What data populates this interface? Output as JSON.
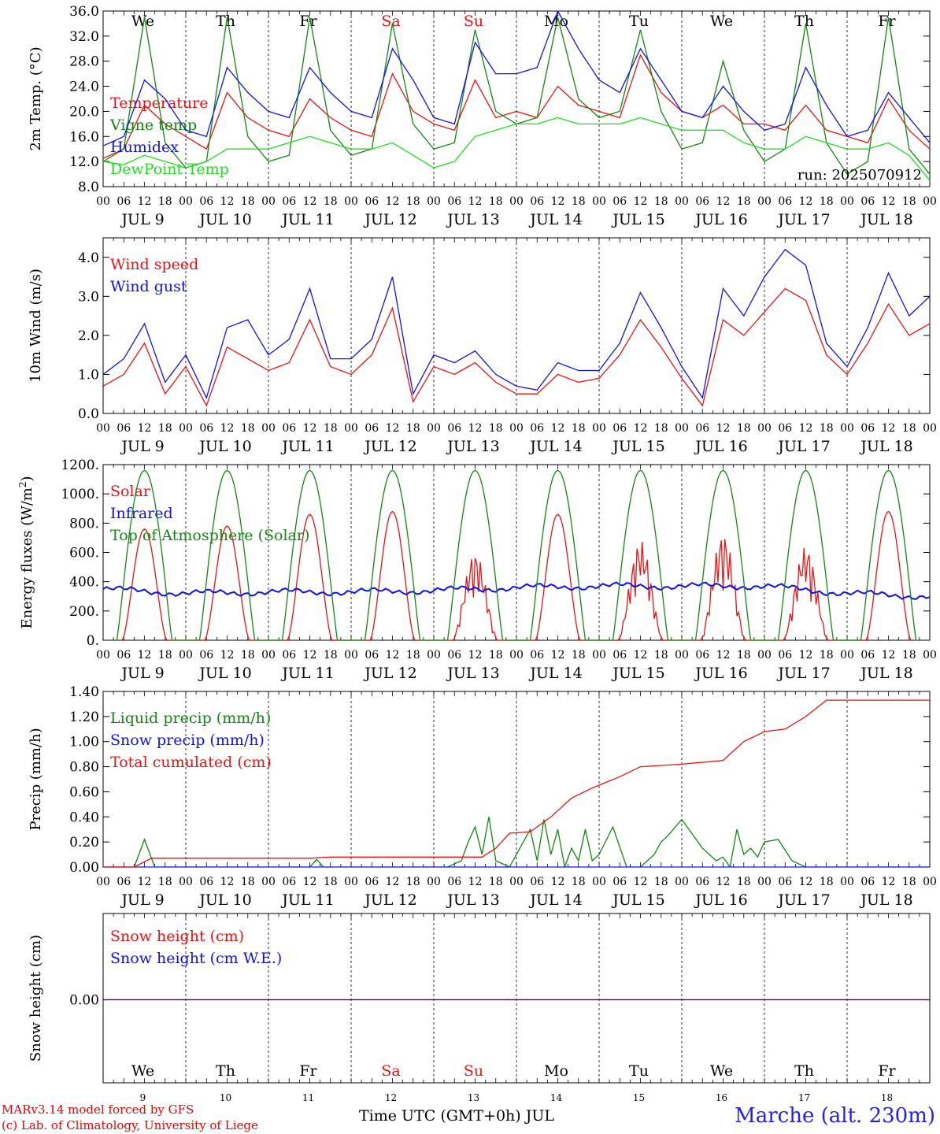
{
  "colors": {
    "red": "#ee1111",
    "green": "#118811",
    "blue": "#1111ee",
    "lightgreen": "#22dd22",
    "black": "#000000"
  },
  "days": {
    "abbrev": [
      "We",
      "Th",
      "Fr",
      "Sa",
      "Su",
      "Mo",
      "Tu",
      "We",
      "Th",
      "Fr"
    ],
    "weekend": [
      false,
      false,
      false,
      true,
      true,
      false,
      false,
      false,
      false,
      false
    ],
    "dates": [
      "JUL  9",
      "JUL 10",
      "JUL 11",
      "JUL 12",
      "JUL 13",
      "JUL 14",
      "JUL 15",
      "JUL 16",
      "JUL 17",
      "JUL 18"
    ],
    "numbers": [
      "9",
      "10",
      "11",
      "12",
      "13",
      "14",
      "15",
      "16",
      "17",
      "18"
    ]
  },
  "hour_labels": [
    "00",
    "06",
    "12",
    "18"
  ],
  "footer": {
    "model": "MARv3.14 model forced by GFS",
    "credit": "(c) Lab. of Climatology, University of Liege",
    "xlabel": "Time UTC (GMT+0h) JUL",
    "station": "Marche (alt. 230m)"
  },
  "chart_data": [
    {
      "type": "line",
      "ylabel": "2m Temp. (°C)",
      "ylim": [
        8,
        36
      ],
      "yticks": [
        "8.0",
        "12.0",
        "16.0",
        "20.0",
        "24.0",
        "28.0",
        "32.0",
        "36.0"
      ],
      "annotation": "run: 2025070912",
      "x_unit": "hours since JUL 9 00 UTC",
      "series": [
        {
          "name": "Temperature",
          "color": "#ee1111",
          "x": [
            0,
            6,
            12,
            18,
            24,
            30,
            36,
            42,
            48,
            54,
            60,
            66,
            72,
            78,
            84,
            90,
            96,
            102,
            108,
            114,
            120,
            126,
            132,
            138,
            144,
            150,
            156,
            162,
            168,
            174,
            180,
            186,
            192,
            198,
            204,
            210,
            216,
            222,
            228,
            234,
            240
          ],
          "values": [
            12.5,
            14,
            21,
            18,
            16,
            14,
            23,
            19,
            17,
            16,
            22,
            19,
            17,
            16,
            26,
            20,
            18,
            17,
            25,
            19,
            20,
            19,
            24,
            21,
            20,
            19,
            29,
            23,
            20,
            19,
            21,
            18,
            18,
            17,
            21,
            17,
            16,
            15,
            22,
            17,
            14
          ]
        },
        {
          "name": "Vigne temp",
          "color": "#118811",
          "x": [
            0,
            6,
            12,
            18,
            24,
            30,
            36,
            42,
            48,
            54,
            60,
            66,
            72,
            78,
            84,
            90,
            96,
            102,
            108,
            114,
            120,
            126,
            132,
            138,
            144,
            150,
            156,
            162,
            168,
            174,
            180,
            186,
            192,
            198,
            204,
            210,
            216,
            222,
            228,
            234,
            240
          ],
          "values": [
            12,
            14,
            35,
            15,
            11,
            12,
            35,
            16,
            12,
            13,
            35,
            17,
            13,
            14,
            34,
            18,
            14,
            15,
            33,
            20,
            18,
            19,
            35,
            22,
            19,
            20,
            33,
            20,
            14,
            15,
            28,
            17,
            12,
            14,
            34,
            15,
            10,
            12,
            35,
            14,
            10
          ]
        },
        {
          "name": "Humidex",
          "color": "#1111ee",
          "x": [
            0,
            6,
            12,
            18,
            24,
            30,
            36,
            42,
            48,
            54,
            60,
            66,
            72,
            78,
            84,
            90,
            96,
            102,
            108,
            114,
            120,
            126,
            132,
            138,
            144,
            150,
            156,
            162,
            168,
            174,
            180,
            186,
            192,
            198,
            204,
            210,
            216,
            222,
            228,
            234,
            240
          ],
          "values": [
            14.5,
            16,
            25,
            22,
            17,
            16,
            27,
            23,
            20,
            19,
            27,
            23,
            20,
            19,
            30,
            25,
            19,
            18,
            31,
            26,
            26,
            27,
            36,
            30,
            25,
            23,
            30,
            25,
            20,
            19,
            24,
            20,
            17,
            18,
            27,
            21,
            16,
            17,
            23,
            19,
            15
          ]
        },
        {
          "name": "DewPoint Temp",
          "color": "#22dd22",
          "x": [
            0,
            6,
            12,
            18,
            24,
            30,
            36,
            42,
            48,
            54,
            60,
            66,
            72,
            78,
            84,
            90,
            96,
            102,
            108,
            114,
            120,
            126,
            132,
            138,
            144,
            150,
            156,
            162,
            168,
            174,
            180,
            186,
            192,
            198,
            204,
            210,
            216,
            222,
            228,
            234,
            240
          ],
          "values": [
            12,
            11.5,
            13,
            12,
            11,
            12,
            14,
            14,
            14,
            15,
            16,
            15,
            14,
            14,
            15,
            13,
            11,
            12,
            16,
            17,
            18,
            18,
            19,
            18,
            18,
            18,
            19,
            18,
            17,
            17,
            17,
            15,
            14,
            14,
            16,
            15,
            14,
            14,
            15,
            13,
            9
          ]
        }
      ]
    },
    {
      "type": "line",
      "ylabel": "10m Wind (m/s)",
      "ylim": [
        0,
        4.5
      ],
      "yticks": [
        "0.0",
        "1.0",
        "2.0",
        "3.0",
        "4.0"
      ],
      "series": [
        {
          "name": "Wind speed",
          "color": "#ee1111",
          "x": [
            0,
            6,
            12,
            18,
            24,
            30,
            36,
            42,
            48,
            54,
            60,
            66,
            72,
            78,
            84,
            90,
            96,
            102,
            108,
            114,
            120,
            126,
            132,
            138,
            144,
            150,
            156,
            162,
            168,
            174,
            180,
            186,
            192,
            198,
            204,
            210,
            216,
            222,
            228,
            234,
            240
          ],
          "values": [
            0.7,
            1.0,
            1.8,
            0.5,
            1.2,
            0.2,
            1.7,
            1.4,
            1.1,
            1.3,
            2.4,
            1.2,
            1.0,
            1.5,
            2.7,
            0.3,
            1.2,
            1.0,
            1.3,
            0.8,
            0.5,
            0.5,
            1.0,
            0.8,
            0.9,
            1.5,
            2.4,
            1.7,
            0.9,
            0.2,
            2.4,
            2.0,
            2.6,
            3.2,
            2.9,
            1.5,
            1.0,
            1.8,
            2.8,
            2.0,
            2.3
          ]
        },
        {
          "name": "Wind gust",
          "color": "#1111ee",
          "x": [
            0,
            6,
            12,
            18,
            24,
            30,
            36,
            42,
            48,
            54,
            60,
            66,
            72,
            78,
            84,
            90,
            96,
            102,
            108,
            114,
            120,
            126,
            132,
            138,
            144,
            150,
            156,
            162,
            168,
            174,
            180,
            186,
            192,
            198,
            204,
            210,
            216,
            222,
            228,
            234,
            240
          ],
          "values": [
            1.0,
            1.4,
            2.3,
            0.8,
            1.5,
            0.4,
            2.2,
            2.4,
            1.5,
            1.9,
            3.2,
            1.4,
            1.4,
            1.9,
            3.5,
            0.5,
            1.5,
            1.3,
            1.6,
            1.0,
            0.7,
            0.6,
            1.3,
            1.1,
            1.1,
            1.8,
            3.1,
            2.2,
            1.2,
            0.4,
            3.2,
            2.5,
            3.5,
            4.2,
            3.8,
            1.8,
            1.2,
            2.2,
            3.6,
            2.5,
            3.0
          ]
        }
      ]
    },
    {
      "type": "line",
      "ylabel": "Energy fluxes (W/m²)",
      "ylim": [
        0,
        1200
      ],
      "yticks": [
        "0.",
        "200.",
        "400.",
        "600.",
        "800.",
        "1000.",
        "1200."
      ],
      "series": [
        {
          "name": "Solar",
          "color": "#ee1111",
          "daily_peak": [
            760,
            780,
            860,
            880,
            600,
            860,
            680,
            730,
            640,
            880
          ]
        },
        {
          "name": "Infrared",
          "color": "#1111ee",
          "x": [
            0,
            24,
            48,
            72,
            96,
            120,
            144,
            168,
            192,
            216,
            240
          ],
          "values": [
            350,
            320,
            330,
            330,
            340,
            360,
            370,
            370,
            370,
            320,
            300
          ]
        },
        {
          "name": "Top of Atmosphere (Solar)",
          "color": "#118811",
          "daily_peak": [
            1160,
            1160,
            1160,
            1160,
            1160,
            1160,
            1160,
            1160,
            1160,
            1160
          ]
        }
      ]
    },
    {
      "type": "line",
      "ylabel": "Precip (mm/h)",
      "ylim": [
        0,
        1.4
      ],
      "yticks": [
        "0.00",
        "0.20",
        "0.40",
        "0.60",
        "0.80",
        "1.00",
        "1.20",
        "1.40"
      ],
      "series": [
        {
          "name": "Liquid precip (mm/h)",
          "color": "#118811",
          "x": [
            0,
            9,
            12,
            15,
            18,
            60,
            62,
            64,
            100,
            104,
            106,
            108,
            110,
            112,
            114,
            118,
            120,
            124,
            126,
            128,
            130,
            132,
            134,
            136,
            138,
            140,
            142,
            144,
            148,
            152,
            156,
            160,
            162,
            164,
            168,
            174,
            176,
            178,
            180,
            182,
            184,
            186,
            188,
            190,
            192,
            196,
            200,
            204,
            206,
            208,
            216,
            240
          ],
          "values": [
            0,
            0,
            0.22,
            0,
            0,
            0,
            0.06,
            0,
            0,
            0.05,
            0.2,
            0.32,
            0.1,
            0.4,
            0.05,
            0,
            0.1,
            0.3,
            0.05,
            0.38,
            0.1,
            0.3,
            0,
            0.15,
            0.05,
            0.3,
            0.05,
            0.1,
            0.32,
            0,
            0,
            0.1,
            0.2,
            0.25,
            0.38,
            0.15,
            0.1,
            0.05,
            0.08,
            0,
            0.3,
            0.1,
            0.15,
            0.08,
            0.2,
            0.22,
            0.05,
            0,
            0,
            0,
            0,
            0
          ]
        },
        {
          "name": "Snow precip (mm/h)",
          "color": "#1111ee",
          "x": [
            0,
            240
          ],
          "values": [
            0,
            0
          ]
        },
        {
          "name": "Total cumulated (cm)",
          "color": "#ee1111",
          "x": [
            0,
            9,
            14,
            60,
            66,
            110,
            114,
            118,
            124,
            130,
            136,
            142,
            150,
            156,
            168,
            180,
            186,
            192,
            198,
            204,
            210,
            216,
            240
          ],
          "values": [
            0,
            0,
            0.07,
            0.07,
            0.08,
            0.08,
            0.15,
            0.27,
            0.28,
            0.4,
            0.55,
            0.63,
            0.72,
            0.8,
            0.82,
            0.85,
            1.0,
            1.08,
            1.1,
            1.2,
            1.33,
            1.33,
            1.33
          ]
        }
      ]
    },
    {
      "type": "line",
      "ylabel": "Snow height (cm)",
      "yticks": [
        "0.00"
      ],
      "series": [
        {
          "name": "Snow height (cm)",
          "color": "#ee1111",
          "x": [
            0,
            240
          ],
          "values": [
            0,
            0
          ]
        },
        {
          "name": "Snow height (cm W.E.)",
          "color": "#1111ee",
          "x": [
            0,
            240
          ],
          "values": [
            0,
            0
          ]
        }
      ]
    }
  ]
}
